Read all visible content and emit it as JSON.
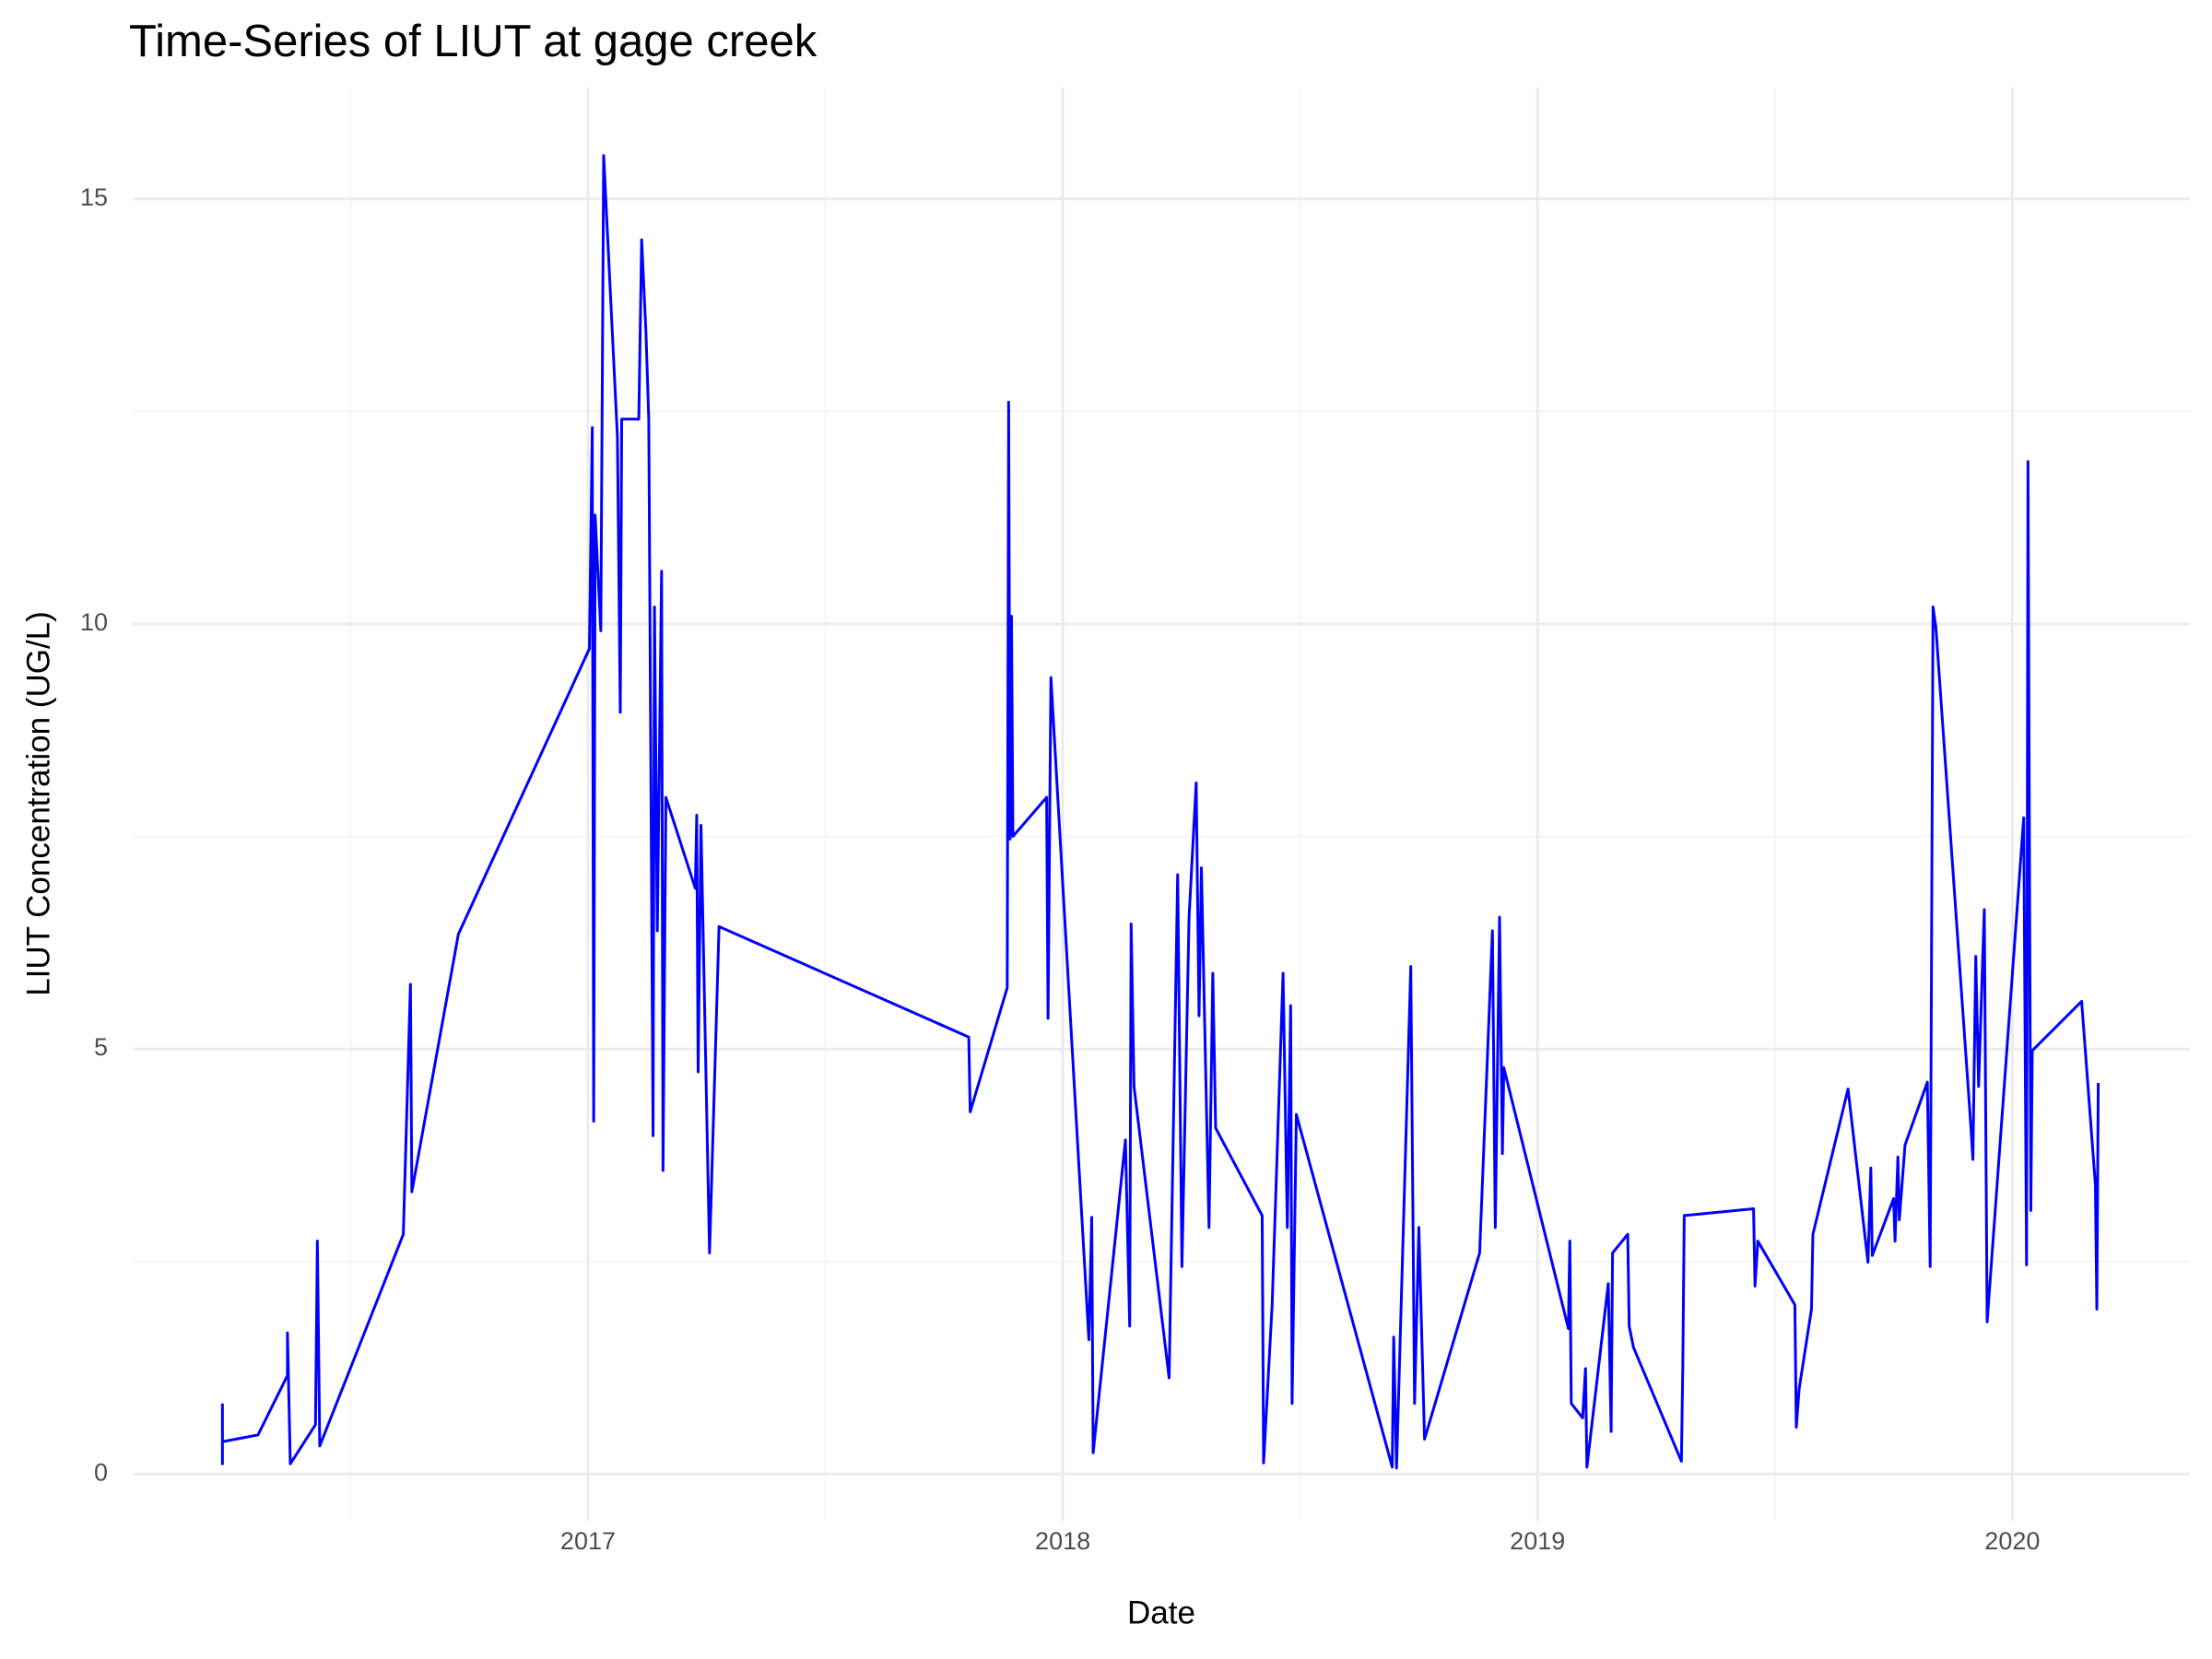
{
  "chart_data": {
    "type": "line",
    "title": "Time-Series of LIUT at gage creek",
    "x_label": "Date",
    "y_label": "LIUT Concentration (UG/L)",
    "x": [
      2016.23,
      2016.23,
      2016.23,
      2016.305,
      2016.367,
      2016.367,
      2016.373,
      2016.426,
      2016.43,
      2016.435,
      2016.611,
      2016.626,
      2016.629,
      2016.727,
      2017.003,
      2017.009,
      2017.012,
      2017.015,
      2017.027,
      2017.033,
      2017.062,
      2017.068,
      2017.071,
      2017.107,
      2017.113,
      2017.122,
      2017.128,
      2017.137,
      2017.14,
      2017.146,
      2017.155,
      2017.158,
      2017.164,
      2017.226,
      2017.229,
      2017.232,
      2017.238,
      2017.256,
      2017.276,
      2017.802,
      2017.805,
      2017.883,
      2017.886,
      2017.889,
      2017.892,
      2017.895,
      2017.966,
      2017.969,
      2017.975,
      2018.055,
      2018.061,
      2018.064,
      2018.132,
      2018.141,
      2018.144,
      2018.15,
      2018.224,
      2018.242,
      2018.251,
      2018.266,
      2018.281,
      2018.287,
      2018.292,
      2018.308,
      2018.316,
      2018.322,
      2018.42,
      2018.423,
      2018.441,
      2018.464,
      2018.473,
      2018.48,
      2018.483,
      2018.492,
      2018.694,
      2018.697,
      2018.703,
      2018.733,
      2018.741,
      2018.75,
      2018.762,
      2018.878,
      2018.905,
      2018.911,
      2018.92,
      2018.926,
      2018.929,
      2019.065,
      2019.068,
      2019.071,
      2019.095,
      2019.101,
      2019.104,
      2019.149,
      2019.155,
      2019.158,
      2019.19,
      2019.193,
      2019.202,
      2019.303,
      2019.306,
      2019.309,
      2019.455,
      2019.458,
      2019.464,
      2019.542,
      2019.545,
      2019.551,
      2019.577,
      2019.58,
      2019.654,
      2019.696,
      2019.702,
      2019.705,
      2019.75,
      2019.753,
      2019.759,
      2019.762,
      2019.774,
      2019.821,
      2019.827,
      2019.833,
      2019.839,
      2019.911,
      2019.917,
      2019.923,
      2019.929,
      2019.941,
      2019.947,
      2020.024,
      2020.03,
      2020.033,
      2020.039,
      2020.042,
      2020.146,
      2020.175,
      2020.178,
      2020.181
    ],
    "series": [
      {
        "name": "LIUT",
        "color": "#0000ff",
        "values": [
          0.83,
          0.12,
          0.38,
          0.46,
          1.16,
          1.66,
          0.12,
          0.58,
          2.74,
          0.33,
          2.82,
          5.76,
          3.32,
          6.35,
          9.71,
          12.31,
          4.15,
          11.28,
          9.92,
          15.51,
          12.2,
          8.96,
          12.41,
          12.41,
          14.52,
          13.44,
          12.41,
          3.98,
          10.2,
          6.39,
          10.62,
          3.57,
          7.96,
          6.89,
          7.75,
          4.73,
          7.63,
          2.6,
          6.44,
          5.14,
          4.26,
          5.72,
          12.61,
          7.47,
          10.09,
          7.5,
          7.96,
          5.36,
          9.37,
          1.58,
          3.02,
          0.25,
          3.93,
          1.74,
          6.47,
          4.56,
          1.13,
          7.05,
          2.44,
          6.55,
          8.13,
          5.39,
          7.13,
          2.9,
          5.89,
          4.07,
          3.04,
          0.13,
          1.99,
          5.89,
          2.9,
          5.51,
          0.83,
          4.23,
          0.08,
          1.61,
          0.07,
          5.97,
          0.83,
          2.9,
          0.41,
          2.6,
          6.39,
          2.9,
          6.55,
          3.77,
          4.78,
          1.71,
          2.74,
          0.83,
          0.66,
          1.24,
          0.08,
          2.24,
          0.5,
          2.6,
          2.82,
          1.74,
          1.49,
          0.15,
          1.28,
          3.04,
          3.12,
          2.21,
          2.74,
          1.99,
          0.55,
          1.0,
          1.94,
          2.82,
          4.53,
          2.49,
          3.6,
          2.57,
          3.24,
          2.74,
          3.73,
          2.99,
          3.87,
          4.61,
          2.44,
          10.2,
          9.96,
          4.23,
          3.7,
          6.09,
          4.56,
          6.64,
          1.79,
          7.72,
          2.46,
          11.91,
          3.1,
          4.98,
          5.56,
          3.4,
          1.94,
          4.6
        ]
      }
    ],
    "xlim": [
      2016.043,
      2020.374
    ],
    "xticks": [
      2017,
      2018,
      2019,
      2020
    ],
    "x_minor_ticks": [
      2016.5,
      2017.5,
      2018.5,
      2019.5
    ],
    "ylim": [
      -0.55,
      16.31
    ],
    "yticks": [
      0,
      5,
      10,
      15
    ],
    "y_minor_ticks": [
      2.5,
      7.5,
      12.5
    ],
    "grid": true
  }
}
